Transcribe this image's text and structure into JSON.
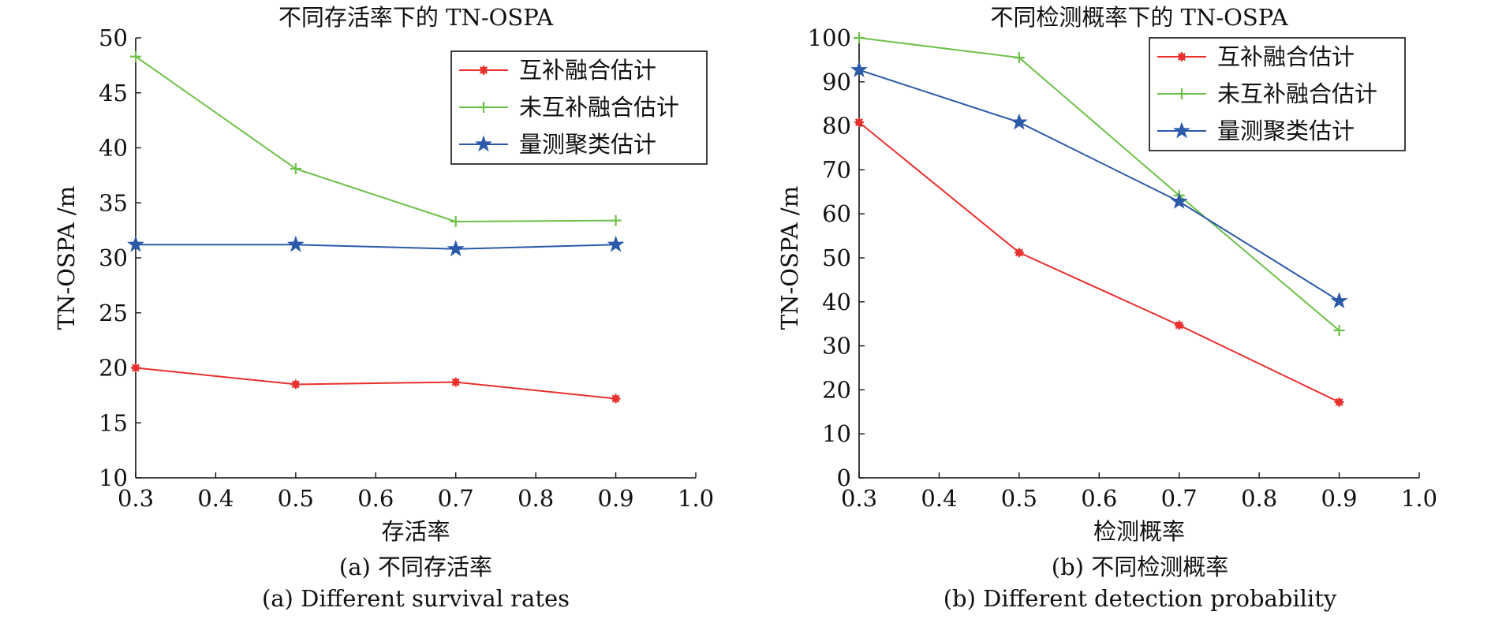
{
  "chart_data": [
    {
      "type": "line",
      "title": "不同存活率下的 TN-OSPA",
      "xlabel": "存活率",
      "ylabel": "TN-OSPA /m",
      "x": [
        0.3,
        0.5,
        0.7,
        0.9
      ],
      "xlim": [
        0.3,
        1.0
      ],
      "ylim": [
        10,
        50
      ],
      "xticks": [
        "0.3",
        "0.4",
        "0.5",
        "0.6",
        "0.7",
        "0.8",
        "0.9",
        "1.0"
      ],
      "yticks": [
        "10",
        "15",
        "20",
        "25",
        "30",
        "35",
        "40",
        "45",
        "50"
      ],
      "legend_position": "top-right",
      "grid": false,
      "series": [
        {
          "name": "互补融合估计",
          "color": "#e8302d",
          "marker": "asterisk",
          "values": [
            20.0,
            18.5,
            18.7,
            17.2
          ]
        },
        {
          "name": "未互补融合估计",
          "color": "#6ec04a",
          "marker": "plus",
          "values": [
            48.3,
            38.1,
            33.3,
            33.4
          ]
        },
        {
          "name": "量测聚类估计",
          "color": "#2b5aa8",
          "marker": "star",
          "values": [
            31.2,
            31.2,
            30.8,
            31.2
          ]
        }
      ]
    },
    {
      "type": "line",
      "title": "不同检测概率下的 TN-OSPA",
      "xlabel": "检测概率",
      "ylabel": "TN-OSPA /m",
      "x": [
        0.3,
        0.5,
        0.7,
        0.9
      ],
      "xlim": [
        0.3,
        1.0
      ],
      "ylim": [
        0,
        100
      ],
      "xticks": [
        "0.3",
        "0.4",
        "0.5",
        "0.6",
        "0.7",
        "0.8",
        "0.9",
        "1.0"
      ],
      "yticks": [
        "0",
        "10",
        "20",
        "30",
        "40",
        "50",
        "60",
        "70",
        "80",
        "90",
        "100"
      ],
      "legend_position": "top-right",
      "grid": false,
      "series": [
        {
          "name": "互补融合估计",
          "color": "#e8302d",
          "marker": "asterisk",
          "values": [
            80.8,
            51.2,
            34.7,
            17.2
          ]
        },
        {
          "name": "未互补融合估计",
          "color": "#6ec04a",
          "marker": "plus",
          "values": [
            100.0,
            95.5,
            64.2,
            33.5
          ]
        },
        {
          "name": "量测聚类估计",
          "color": "#2b5aa8",
          "marker": "star",
          "values": [
            92.7,
            80.8,
            62.8,
            40.2
          ]
        }
      ]
    }
  ],
  "captions": [
    {
      "cn": "(a) 不同存活率",
      "en": "(a) Different survival rates"
    },
    {
      "cn": "(b) 不同检测概率",
      "en": "(b) Different detection probability"
    }
  ]
}
